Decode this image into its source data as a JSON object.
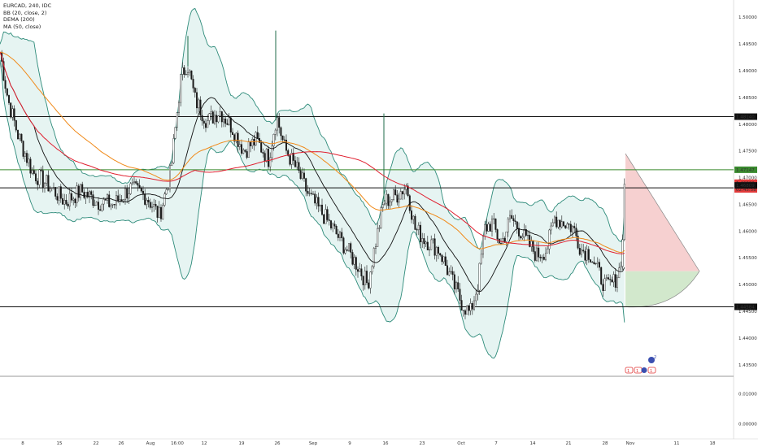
{
  "legend": {
    "symbol": "EURCAD, 240, IDC",
    "bb": "BB (20, close, 2)",
    "dema": "DEMA (200)",
    "ma": "MA (50, close)"
  },
  "colors": {
    "candle": "#1a1a1a",
    "band": "#2e8b7a",
    "band_fill": "#e3f3f1",
    "basis": "#111111",
    "dema": "#f08a1a",
    "ma": "#e02030",
    "hline": "#111111",
    "green_line": "#3a8a2e",
    "cone_top": "#f4c8c8",
    "cone_bottom": "#cde6c6",
    "badge_black": "#111111",
    "badge_red": "#e23a3a",
    "badge_green": "#2e8a3e",
    "indicator": "#3b4fb0"
  },
  "chart_data": {
    "type": "candlestick",
    "title": "EURCAD, 240, IDC",
    "ylim": [
      1.433,
      1.502
    ],
    "y_ticks": [
      "1.50000",
      "1.49500",
      "1.49000",
      "1.48500",
      "1.48000",
      "1.47500",
      "1.47000",
      "1.46500",
      "1.46000",
      "1.45500",
      "1.45000",
      "1.44500",
      "1.44000",
      "1.43500"
    ],
    "x_ticks": [
      "8",
      "15",
      "22",
      "26",
      "Aug",
      "16:00",
      "12",
      "19",
      "26",
      "Sep",
      "9",
      "16",
      "23",
      "Oct",
      "7",
      "14",
      "21",
      "28",
      "Nov",
      "11",
      "18"
    ],
    "sub_ylim": [
      -0.005,
      0.015
    ],
    "sub_y_ticks": [
      "0.01000",
      "0.00000"
    ],
    "horizontal_levels": [
      {
        "value": 1.4814,
        "label": "1.48140"
      },
      {
        "value": 1.46809,
        "label": "1.46809"
      },
      {
        "value": 1.44584,
        "label": "1.44584"
      }
    ],
    "green_level": {
      "value": 1.47147,
      "label": "1.47147"
    },
    "price_labels": [
      {
        "text": "1.46869",
        "color": "#e23a3a"
      },
      {
        "text": "02:45:58",
        "color": "#e23a3a"
      }
    ],
    "anchors": [
      [
        0,
        1.4935
      ],
      [
        10,
        1.4845
      ],
      [
        22,
        1.478
      ],
      [
        40,
        1.471
      ],
      [
        60,
        1.4685
      ],
      [
        80,
        1.4655
      ],
      [
        100,
        1.4675
      ],
      [
        120,
        1.4655
      ],
      [
        140,
        1.465
      ],
      [
        160,
        1.468
      ],
      [
        180,
        1.4665
      ],
      [
        196,
        1.4628
      ],
      [
        210,
        1.4712
      ],
      [
        222,
        1.4882
      ],
      [
        230,
        1.4915
      ],
      [
        240,
        1.4845
      ],
      [
        255,
        1.4805
      ],
      [
        270,
        1.4825
      ],
      [
        285,
        1.4795
      ],
      [
        300,
        1.475
      ],
      [
        315,
        1.477
      ],
      [
        330,
        1.4735
      ],
      [
        340,
        1.4815
      ],
      [
        350,
        1.4755
      ],
      [
        365,
        1.4715
      ],
      [
        380,
        1.4665
      ],
      [
        400,
        1.4625
      ],
      [
        420,
        1.458
      ],
      [
        440,
        1.4535
      ],
      [
        452,
        1.45
      ],
      [
        462,
        1.458
      ],
      [
        472,
        1.4655
      ],
      [
        486,
        1.4665
      ],
      [
        500,
        1.4685
      ],
      [
        510,
        1.4605
      ],
      [
        522,
        1.4585
      ],
      [
        540,
        1.4565
      ],
      [
        556,
        1.4505
      ],
      [
        568,
        1.4465
      ],
      [
        578,
        1.4445
      ],
      [
        588,
        1.4505
      ],
      [
        596,
        1.4605
      ],
      [
        605,
        1.4615
      ],
      [
        616,
        1.4575
      ],
      [
        628,
        1.4625
      ],
      [
        638,
        1.4605
      ],
      [
        650,
        1.4575
      ],
      [
        660,
        1.4555
      ],
      [
        672,
        1.4565
      ],
      [
        682,
        1.4625
      ],
      [
        695,
        1.4615
      ],
      [
        705,
        1.4605
      ],
      [
        715,
        1.4565
      ],
      [
        725,
        1.456
      ],
      [
        735,
        1.4525
      ],
      [
        745,
        1.4495
      ],
      [
        755,
        1.4505
      ],
      [
        762,
        1.453
      ],
      [
        766,
        1.4585
      ],
      [
        769,
        1.4688
      ]
    ],
    "spikes": [
      {
        "x": 231,
        "high": 1.4965
      },
      {
        "x": 339,
        "high": 1.4975
      },
      {
        "x": 472,
        "high": 1.482
      }
    ]
  },
  "badges": {
    "a": "1",
    "b": "1",
    "c": "1",
    "sup": "2"
  }
}
